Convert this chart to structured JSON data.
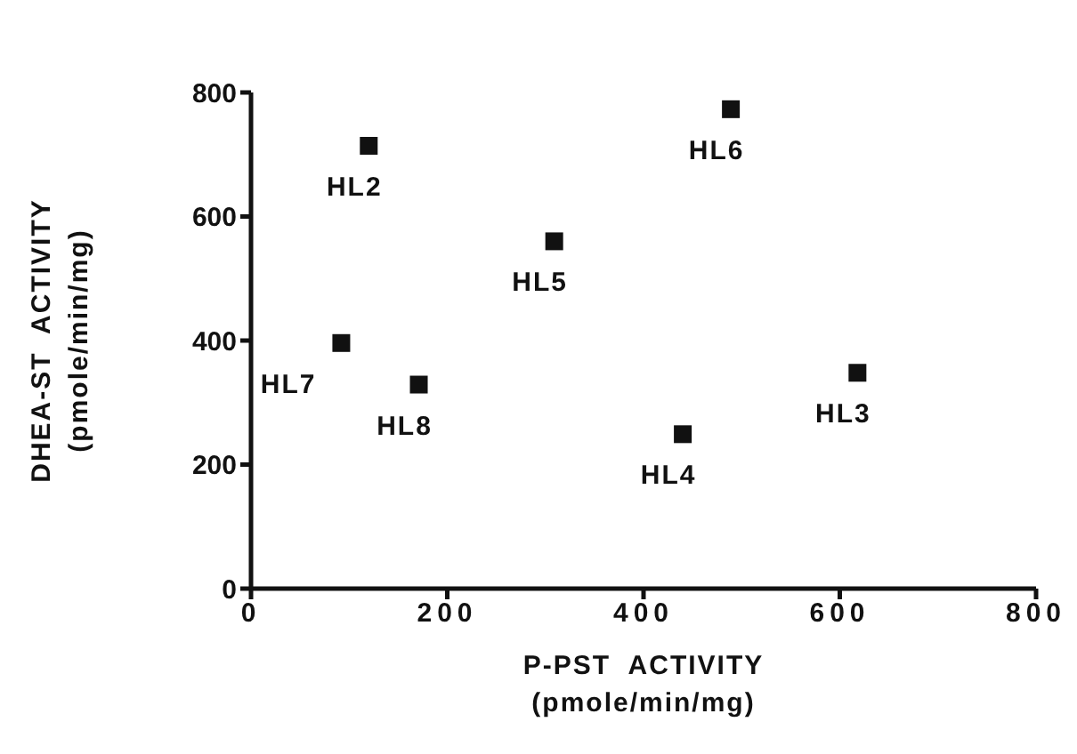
{
  "chart_data": {
    "type": "scatter",
    "xlabel": "P-PST  ACTIVITY\n(pmole/min/mg)",
    "ylabel": "DHEA-ST  ACTIVITY\n(pmole/min/mg)",
    "x": [
      120,
      489,
      309,
      92,
      171,
      440,
      618
    ],
    "values": [
      714,
      773,
      560,
      396,
      329,
      249,
      348
    ],
    "color": "#111111",
    "marker": "square",
    "xlim": [
      0,
      800
    ],
    "xticks": [
      0,
      200,
      400,
      600,
      800
    ],
    "ylim": [
      0,
      800
    ],
    "yticks": [
      0,
      200,
      400,
      600,
      800
    ],
    "grid": false,
    "legend": false,
    "annotations": [
      {
        "text": "HL2",
        "x": 120,
        "y": 714
      },
      {
        "text": "HL6",
        "x": 489,
        "y": 773
      },
      {
        "text": "HL5",
        "x": 309,
        "y": 560
      },
      {
        "text": "HL7",
        "x": 92,
        "y": 396
      },
      {
        "text": "HL8",
        "x": 171,
        "y": 329
      },
      {
        "text": "HL4",
        "x": 440,
        "y": 249
      },
      {
        "text": "HL3",
        "x": 618,
        "y": 348
      }
    ]
  }
}
